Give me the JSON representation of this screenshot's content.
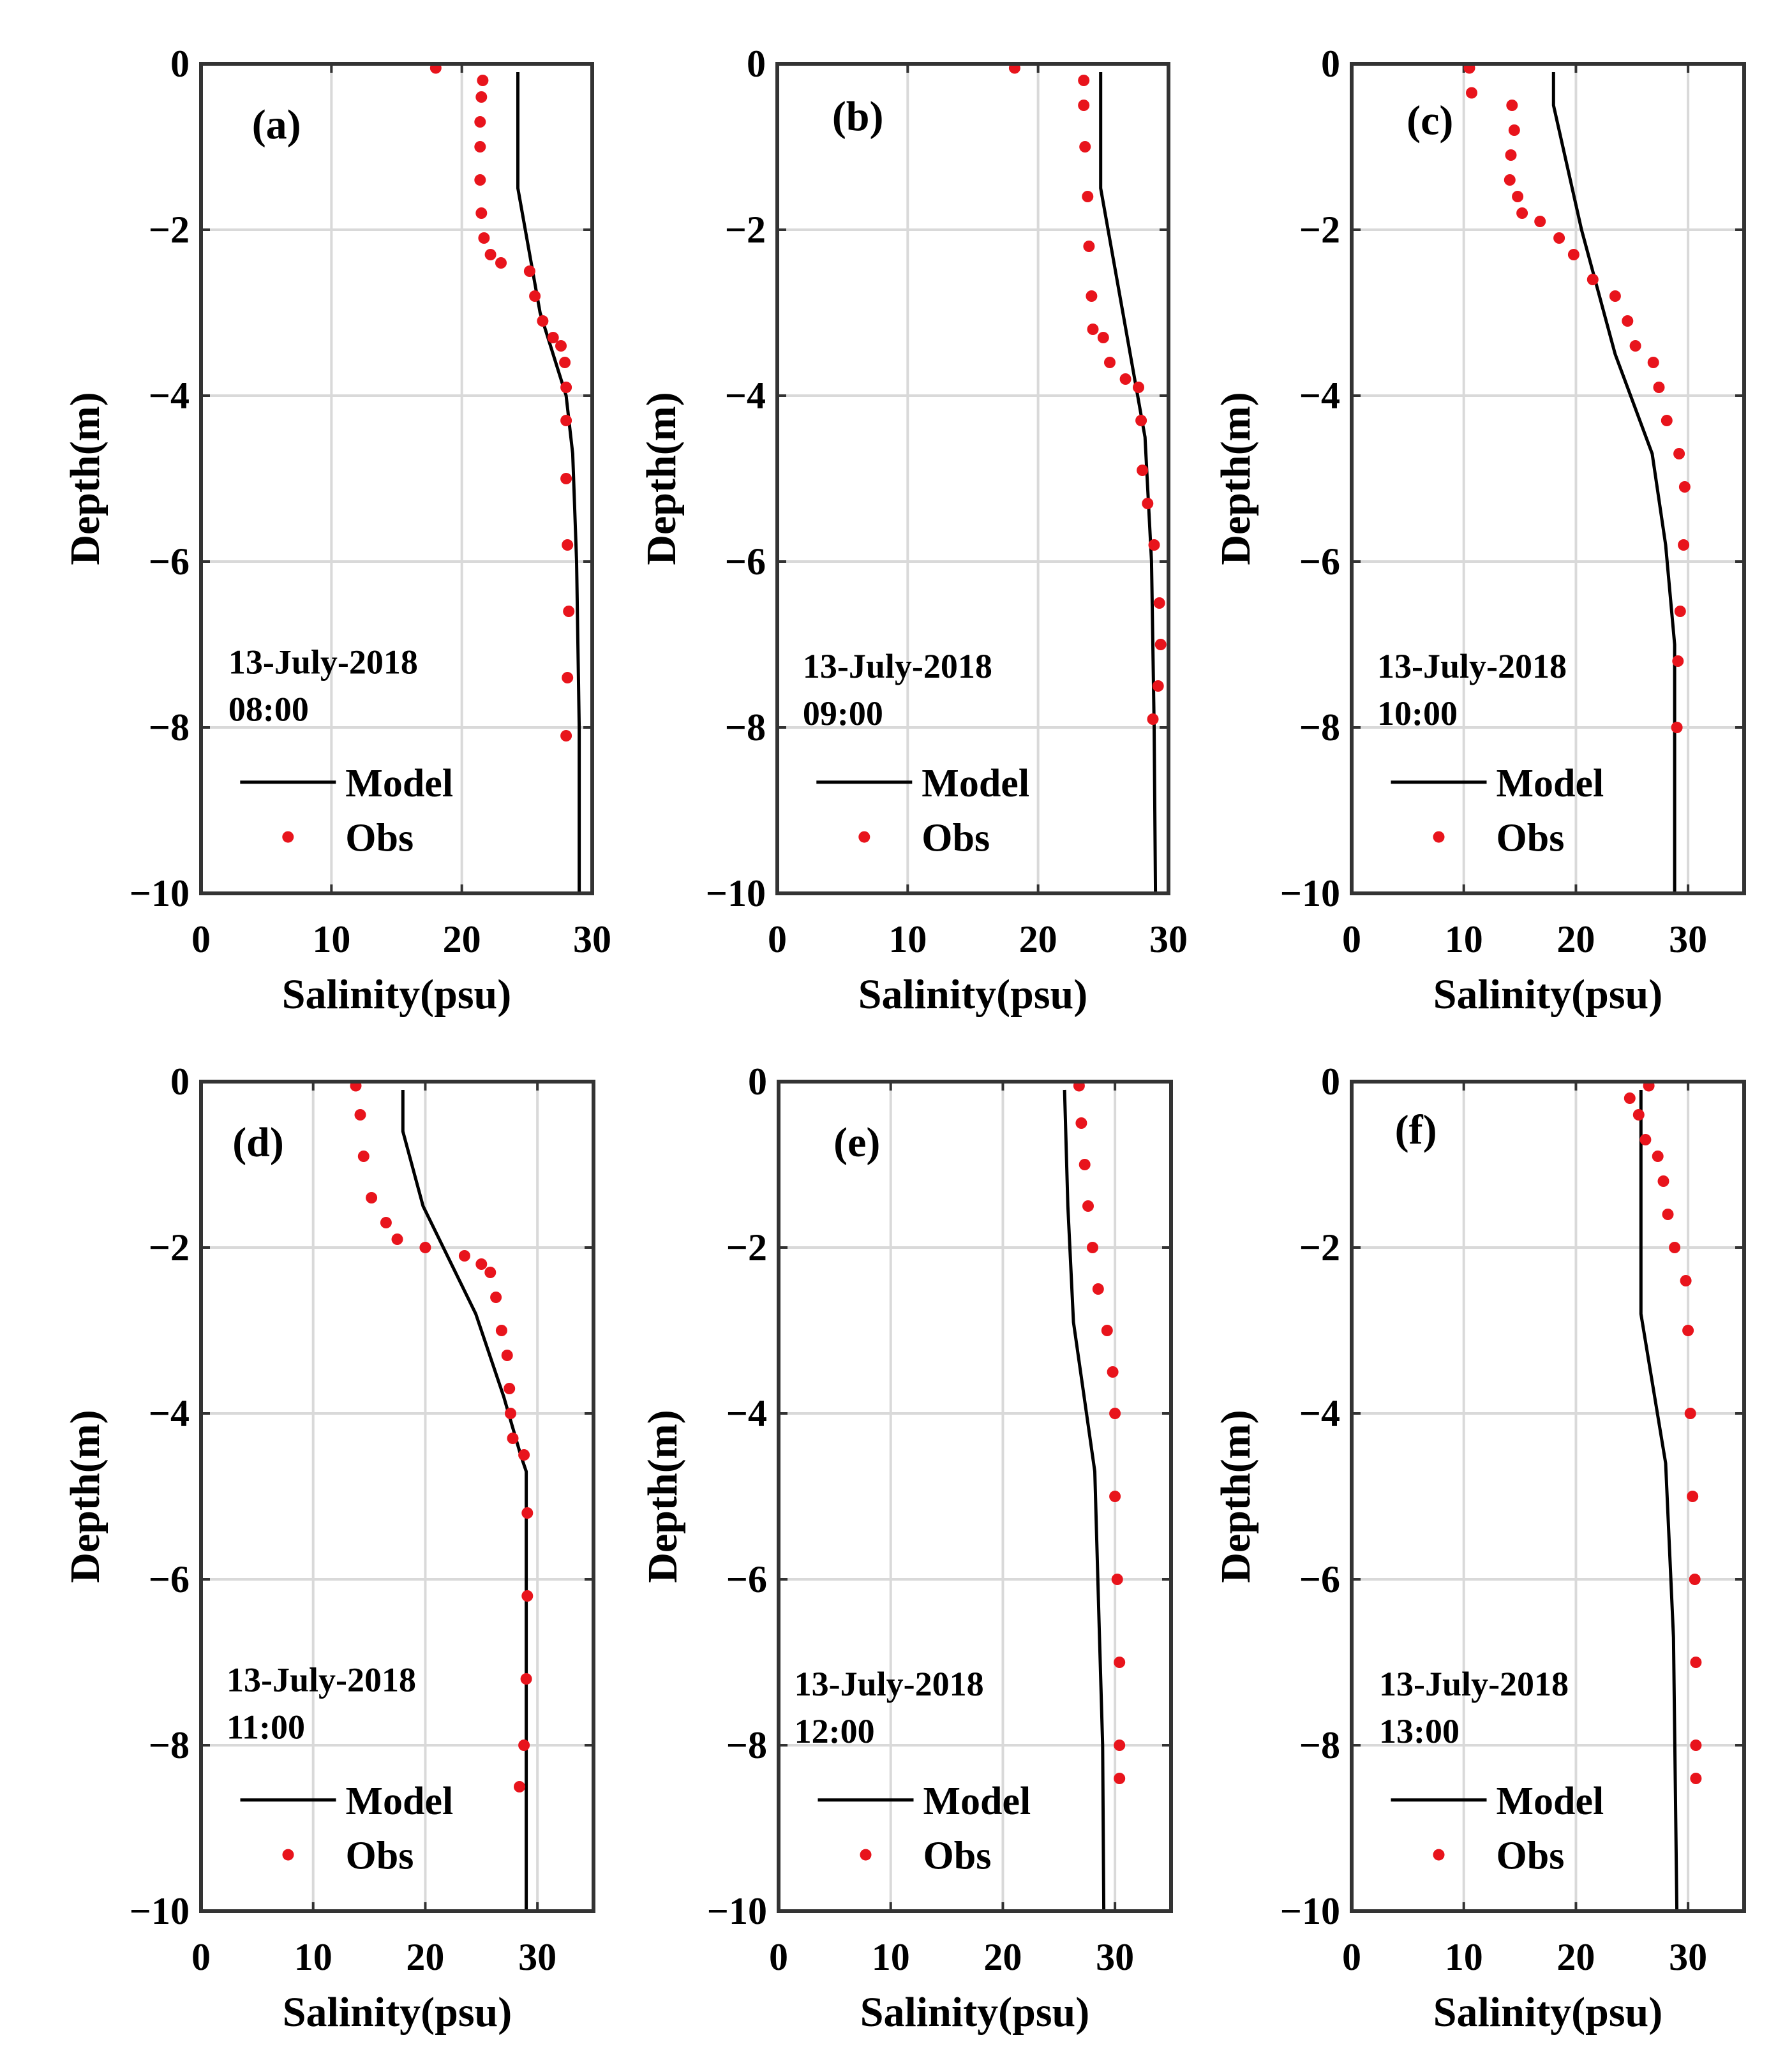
{
  "figure": {
    "xlabel": "Salinity(psu)",
    "ylabel": "Depth(m)",
    "legend": {
      "model": "Model",
      "obs": "Obs"
    },
    "colors": {
      "model": "#000000",
      "obs": "#e8141c",
      "grid": "#d9d9d9",
      "axis": "#333333"
    }
  },
  "chart_data": [
    {
      "type": "line",
      "panel": "(a)",
      "date": "13-July-2018",
      "time": "08:00",
      "xlim": [
        0,
        30
      ],
      "ylim": [
        -10,
        0
      ],
      "xticks": [
        "0",
        "10",
        "20",
        "30"
      ],
      "yticks": [
        "0",
        "−2",
        "−4",
        "−6",
        "−8",
        "−10"
      ],
      "xlabel": "Salinity(psu)",
      "ylabel": "Depth(m)",
      "model": [
        [
          24.3,
          -0.1
        ],
        [
          24.3,
          -1.5
        ],
        [
          26,
          -3
        ],
        [
          28,
          -4
        ],
        [
          28.5,
          -4.7
        ],
        [
          28.8,
          -6
        ],
        [
          29,
          -8
        ],
        [
          29,
          -10
        ]
      ],
      "obs": [
        [
          18,
          -0.05
        ],
        [
          21.6,
          -0.2
        ],
        [
          21.5,
          -0.4
        ],
        [
          21.4,
          -0.7
        ],
        [
          21.4,
          -1.0
        ],
        [
          21.4,
          -1.4
        ],
        [
          21.5,
          -1.8
        ],
        [
          21.7,
          -2.1
        ],
        [
          22.2,
          -2.3
        ],
        [
          23,
          -2.4
        ],
        [
          25.2,
          -2.5
        ],
        [
          25.6,
          -2.8
        ],
        [
          26.2,
          -3.1
        ],
        [
          27,
          -3.3
        ],
        [
          27.6,
          -3.4
        ],
        [
          27.9,
          -3.6
        ],
        [
          28,
          -3.9
        ],
        [
          28,
          -4.3
        ],
        [
          28,
          -5
        ],
        [
          28.1,
          -5.8
        ],
        [
          28.2,
          -6.6
        ],
        [
          28.1,
          -7.4
        ],
        [
          28,
          -8.1
        ]
      ]
    },
    {
      "type": "line",
      "panel": "(b)",
      "date": "13-July-2018",
      "time": "09:00",
      "xlim": [
        0,
        30
      ],
      "ylim": [
        -10,
        0
      ],
      "xticks": [
        "0",
        "10",
        "20",
        "30"
      ],
      "yticks": [
        "0",
        "−2",
        "−4",
        "−6",
        "−8",
        "−10"
      ],
      "xlabel": "Salinity(psu)",
      "ylabel": "Depth(m)",
      "model": [
        [
          24.8,
          -0.1
        ],
        [
          24.8,
          -1.5
        ],
        [
          26.5,
          -3
        ],
        [
          28.2,
          -4.5
        ],
        [
          28.7,
          -6
        ],
        [
          28.9,
          -8
        ],
        [
          29,
          -10
        ]
      ],
      "obs": [
        [
          18.2,
          -0.05
        ],
        [
          23.5,
          -0.2
        ],
        [
          23.5,
          -0.5
        ],
        [
          23.6,
          -1.0
        ],
        [
          23.8,
          -1.6
        ],
        [
          23.9,
          -2.2
        ],
        [
          24.1,
          -2.8
        ],
        [
          24.2,
          -3.2
        ],
        [
          25,
          -3.3
        ],
        [
          25.5,
          -3.6
        ],
        [
          26.7,
          -3.8
        ],
        [
          27.7,
          -3.9
        ],
        [
          27.9,
          -4.3
        ],
        [
          28,
          -4.9
        ],
        [
          28.4,
          -5.3
        ],
        [
          28.9,
          -5.8
        ],
        [
          29.3,
          -6.5
        ],
        [
          29.4,
          -7.0
        ],
        [
          29.2,
          -7.5
        ],
        [
          28.8,
          -7.9
        ]
      ]
    },
    {
      "type": "line",
      "panel": "(c)",
      "date": "13-July-2018",
      "time": "10:00",
      "xlim": [
        0,
        35
      ],
      "ylim": [
        -10,
        0
      ],
      "xticks": [
        "0",
        "10",
        "20",
        "30"
      ],
      "yticks": [
        "0",
        "−2",
        "−4",
        "−6",
        "−8",
        "−10"
      ],
      "xlabel": "Salinity(psu)",
      "ylabel": "Depth(m)",
      "model": [
        [
          18,
          -0.1
        ],
        [
          18,
          -0.5
        ],
        [
          20.5,
          -2
        ],
        [
          23.5,
          -3.5
        ],
        [
          26.8,
          -4.7
        ],
        [
          28,
          -5.8
        ],
        [
          28.8,
          -7
        ],
        [
          28.8,
          -10
        ]
      ],
      "obs": [
        [
          10.5,
          -0.05
        ],
        [
          10.7,
          -0.35
        ],
        [
          14.3,
          -0.5
        ],
        [
          14.5,
          -0.8
        ],
        [
          14.2,
          -1.1
        ],
        [
          14.1,
          -1.4
        ],
        [
          14.8,
          -1.6
        ],
        [
          15.2,
          -1.8
        ],
        [
          16.8,
          -1.9
        ],
        [
          18.5,
          -2.1
        ],
        [
          19.8,
          -2.3
        ],
        [
          21.5,
          -2.6
        ],
        [
          23.5,
          -2.8
        ],
        [
          24.6,
          -3.1
        ],
        [
          25.3,
          -3.4
        ],
        [
          26.9,
          -3.6
        ],
        [
          27.4,
          -3.9
        ],
        [
          28.1,
          -4.3
        ],
        [
          29.2,
          -4.7
        ],
        [
          29.7,
          -5.1
        ],
        [
          29.6,
          -5.8
        ],
        [
          29.3,
          -6.6
        ],
        [
          29.1,
          -7.2
        ],
        [
          29,
          -8
        ]
      ]
    },
    {
      "type": "line",
      "panel": "(d)",
      "date": "13-July-2018",
      "time": "11:00",
      "xlim": [
        0,
        35
      ],
      "ylim": [
        -10,
        0
      ],
      "xticks": [
        "0",
        "10",
        "20",
        "30"
      ],
      "yticks": [
        "0",
        "−2",
        "−4",
        "−6",
        "−8",
        "−10"
      ],
      "xlabel": "Salinity(psu)",
      "ylabel": "Depth(m)",
      "model": [
        [
          18,
          -0.1
        ],
        [
          18,
          -0.6
        ],
        [
          19.8,
          -1.5
        ],
        [
          24.5,
          -2.8
        ],
        [
          27,
          -3.8
        ],
        [
          28.5,
          -4.5
        ],
        [
          29,
          -4.7
        ],
        [
          29,
          -10
        ]
      ],
      "obs": [
        [
          13.8,
          -0.05
        ],
        [
          14.2,
          -0.4
        ],
        [
          14.5,
          -0.9
        ],
        [
          15.2,
          -1.4
        ],
        [
          16.5,
          -1.7
        ],
        [
          17.5,
          -1.9
        ],
        [
          20,
          -2.0
        ],
        [
          23.5,
          -2.1
        ],
        [
          25,
          -2.2
        ],
        [
          25.8,
          -2.3
        ],
        [
          26.3,
          -2.6
        ],
        [
          26.8,
          -3.0
        ],
        [
          27.3,
          -3.3
        ],
        [
          27.5,
          -3.7
        ],
        [
          27.6,
          -4.0
        ],
        [
          27.8,
          -4.3
        ],
        [
          28.8,
          -4.5
        ],
        [
          29.1,
          -5.2
        ],
        [
          29.1,
          -6.2
        ],
        [
          29,
          -7.2
        ],
        [
          28.8,
          -8.0
        ],
        [
          28.4,
          -8.5
        ]
      ]
    },
    {
      "type": "line",
      "panel": "(e)",
      "date": "13-July-2018",
      "time": "12:00",
      "xlim": [
        0,
        35
      ],
      "ylim": [
        -10,
        0
      ],
      "xticks": [
        "0",
        "10",
        "20",
        "30"
      ],
      "yticks": [
        "0",
        "−2",
        "−4",
        "−6",
        "−8",
        "−10"
      ],
      "xlabel": "Salinity(psu)",
      "ylabel": "Depth(m)",
      "model": [
        [
          25.5,
          -0.1
        ],
        [
          25.8,
          -1.5
        ],
        [
          26.3,
          -2.9
        ],
        [
          28.2,
          -4.7
        ],
        [
          28.6,
          -6.6
        ],
        [
          28.9,
          -8
        ],
        [
          29,
          -10
        ]
      ],
      "obs": [
        [
          26.8,
          -0.05
        ],
        [
          27,
          -0.5
        ],
        [
          27.3,
          -1.0
        ],
        [
          27.6,
          -1.5
        ],
        [
          28,
          -2.0
        ],
        [
          28.5,
          -2.5
        ],
        [
          29.3,
          -3.0
        ],
        [
          29.8,
          -3.5
        ],
        [
          30,
          -4.0
        ],
        [
          30,
          -5.0
        ],
        [
          30.2,
          -6.0
        ],
        [
          30.4,
          -7.0
        ],
        [
          30.4,
          -8.0
        ],
        [
          30.4,
          -8.4
        ]
      ]
    },
    {
      "type": "line",
      "panel": "(f)",
      "date": "13-July-2018",
      "time": "13:00",
      "xlim": [
        0,
        35
      ],
      "ylim": [
        -10,
        0
      ],
      "xticks": [
        "0",
        "10",
        "20",
        "30"
      ],
      "yticks": [
        "0",
        "−2",
        "−4",
        "−6",
        "−8",
        "−10"
      ],
      "xlabel": "Salinity(psu)",
      "ylabel": "Depth(m)",
      "model": [
        [
          25.8,
          -0.1
        ],
        [
          25.8,
          -2.8
        ],
        [
          28,
          -4.6
        ],
        [
          28.7,
          -6.7
        ],
        [
          29,
          -10
        ]
      ],
      "obs": [
        [
          26.5,
          -0.05
        ],
        [
          24.8,
          -0.2
        ],
        [
          25.6,
          -0.4
        ],
        [
          26.2,
          -0.7
        ],
        [
          27.3,
          -0.9
        ],
        [
          27.8,
          -1.2
        ],
        [
          28.2,
          -1.6
        ],
        [
          28.8,
          -2.0
        ],
        [
          29.8,
          -2.4
        ],
        [
          30,
          -3.0
        ],
        [
          30.2,
          -4.0
        ],
        [
          30.4,
          -5.0
        ],
        [
          30.6,
          -6.0
        ],
        [
          30.7,
          -7.0
        ],
        [
          30.7,
          -8.0
        ],
        [
          30.7,
          -8.4
        ]
      ]
    }
  ]
}
